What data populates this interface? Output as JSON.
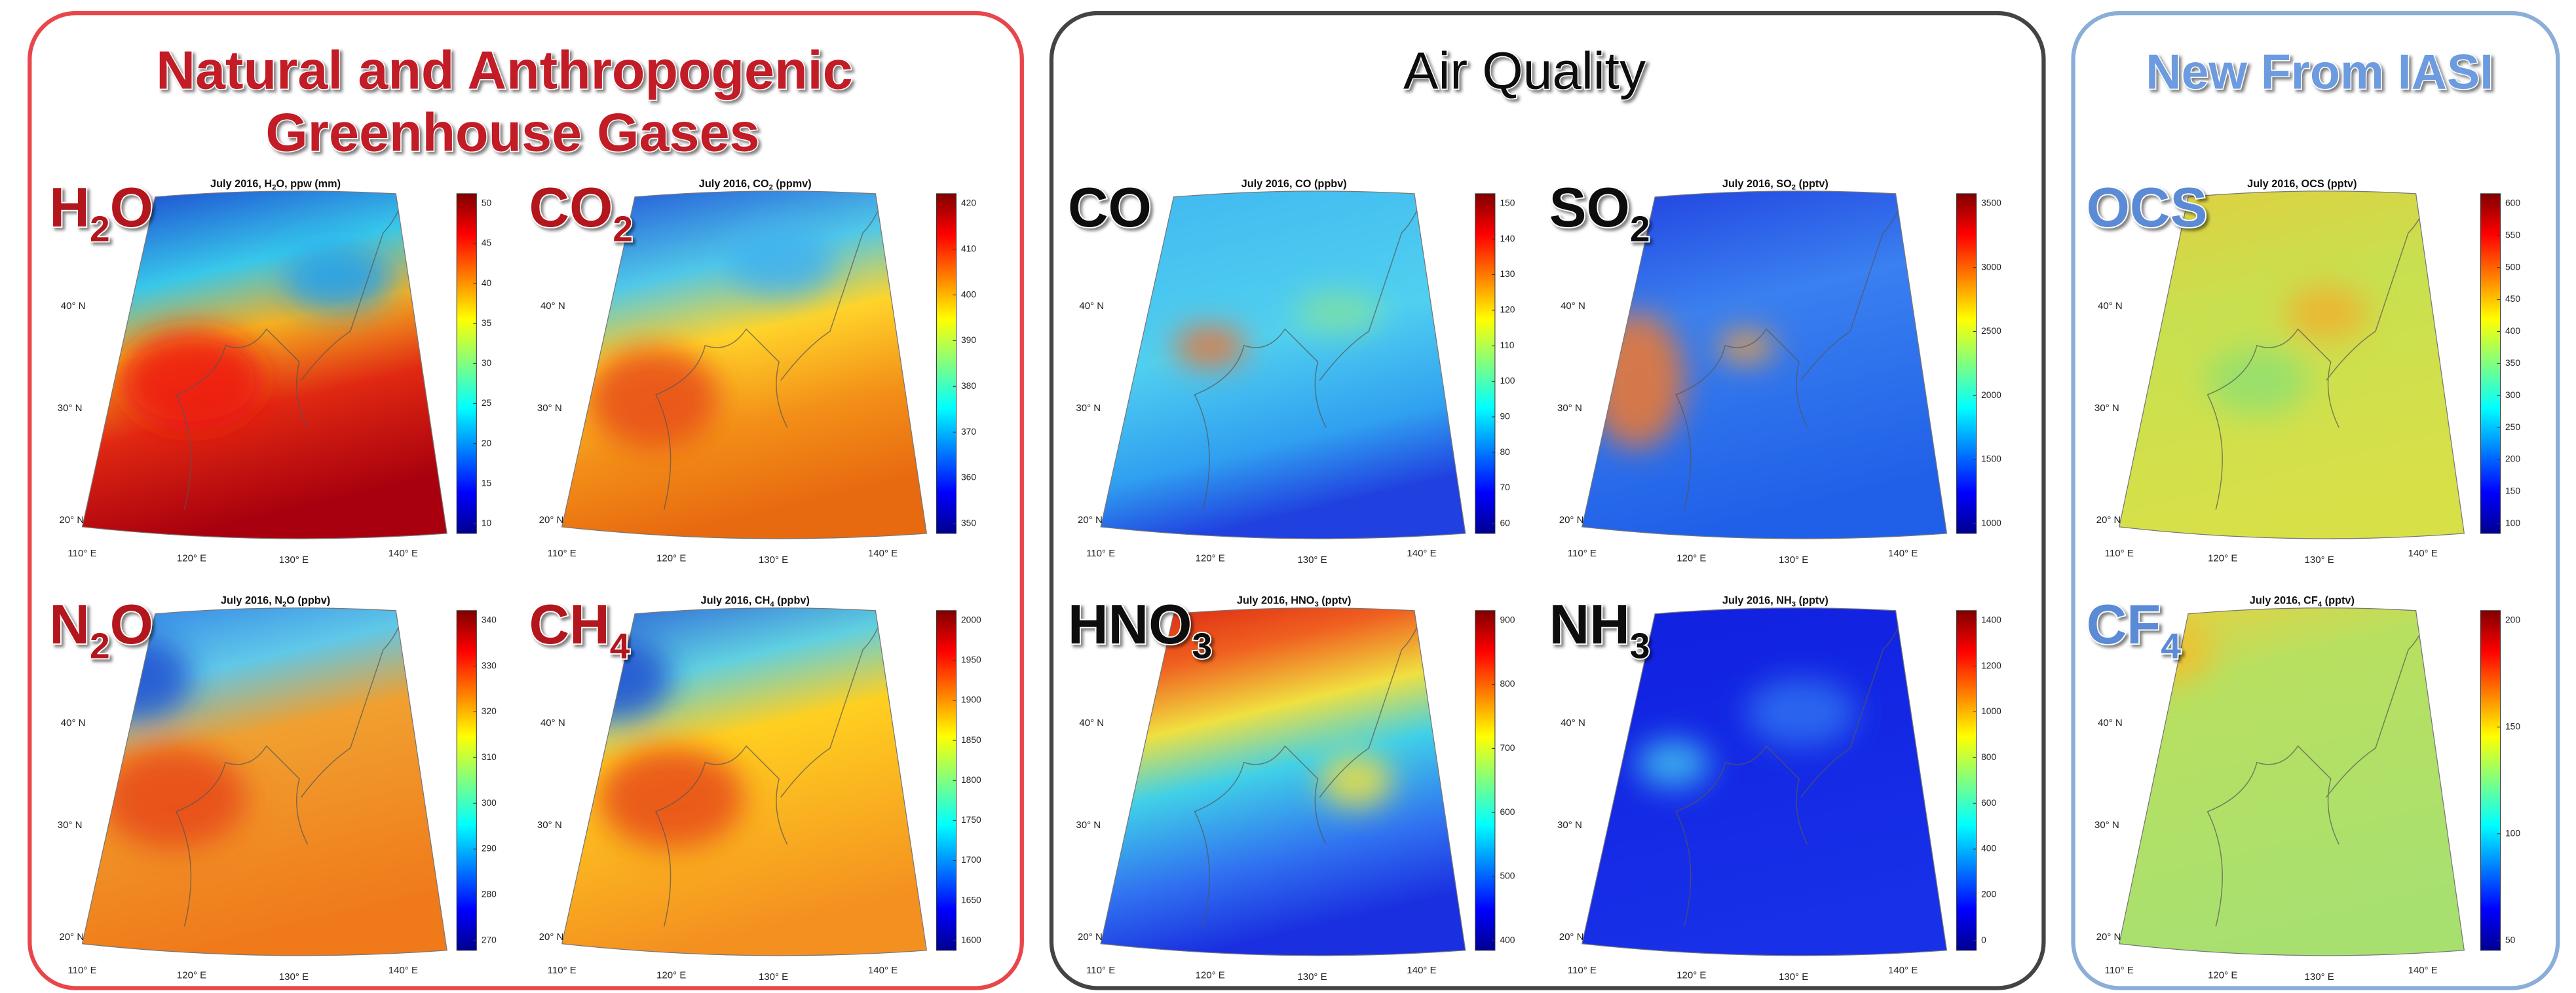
{
  "groups": [
    {
      "title": [
        "Natural and Anthropogenic",
        "Greenhouse Gases"
      ],
      "maps": [
        {
          "label": [
            "H",
            "2",
            "O"
          ],
          "title": [
            "July 2016, H",
            "2",
            "O, ppw (mm)"
          ],
          "colorbar_ticks": [
            10,
            15,
            20,
            25,
            30,
            35,
            40,
            45,
            50
          ]
        },
        {
          "label": [
            "CO",
            "2"
          ],
          "title": [
            "July 2016, CO",
            "2",
            " (ppmv)"
          ],
          "colorbar_ticks": [
            350,
            360,
            370,
            380,
            390,
            400,
            410,
            420
          ]
        },
        {
          "label": [
            "N",
            "2",
            "O"
          ],
          "title": [
            "July 2016, N",
            "2",
            "O (ppbv)"
          ],
          "colorbar_ticks": [
            270,
            280,
            290,
            300,
            310,
            320,
            330,
            340
          ]
        },
        {
          "label": [
            "CH",
            "4"
          ],
          "title": [
            "July 2016, CH",
            "4",
            " (ppbv)"
          ],
          "colorbar_ticks": [
            1600,
            1650,
            1700,
            1750,
            1800,
            1850,
            1900,
            1950,
            2000
          ]
        }
      ]
    },
    {
      "title": [
        "Air Quality"
      ],
      "maps": [
        {
          "label": [
            "CO"
          ],
          "title": [
            "July 2016, CO (ppbv)"
          ],
          "colorbar_ticks": [
            60,
            70,
            80,
            90,
            100,
            110,
            120,
            130,
            140,
            150
          ]
        },
        {
          "label": [
            "SO",
            "2"
          ],
          "title": [
            "July 2016, SO",
            "2",
            " (pptv)"
          ],
          "colorbar_ticks": [
            1000,
            1500,
            2000,
            2500,
            3000,
            3500
          ]
        },
        {
          "label": [
            "HNO",
            "3"
          ],
          "title": [
            "July 2016, HNO",
            "3",
            " (pptv)"
          ],
          "colorbar_ticks": [
            400,
            500,
            600,
            700,
            800,
            900
          ]
        },
        {
          "label": [
            "NH",
            "3"
          ],
          "title": [
            "July 2016, NH",
            "3",
            " (pptv)"
          ],
          "colorbar_ticks": [
            0,
            200,
            400,
            600,
            800,
            1000,
            1200,
            1400
          ]
        }
      ]
    },
    {
      "title": [
        "New From IASI"
      ],
      "maps": [
        {
          "label": [
            "OCS"
          ],
          "title": [
            "July 2016, OCS (pptv)"
          ],
          "colorbar_ticks": [
            100,
            150,
            200,
            250,
            300,
            350,
            400,
            450,
            500,
            550,
            600
          ]
        },
        {
          "label": [
            "CF",
            "4"
          ],
          "title": [
            "July 2016, CF",
            "4",
            " (pptv)"
          ],
          "colorbar_ticks": [
            50,
            100,
            150,
            200
          ]
        }
      ]
    }
  ],
  "map_axes": {
    "lat": [
      "20° N",
      "30° N",
      "40° N"
    ],
    "lon": [
      "110° E",
      "120° E",
      "130° E",
      "140° E"
    ]
  }
}
